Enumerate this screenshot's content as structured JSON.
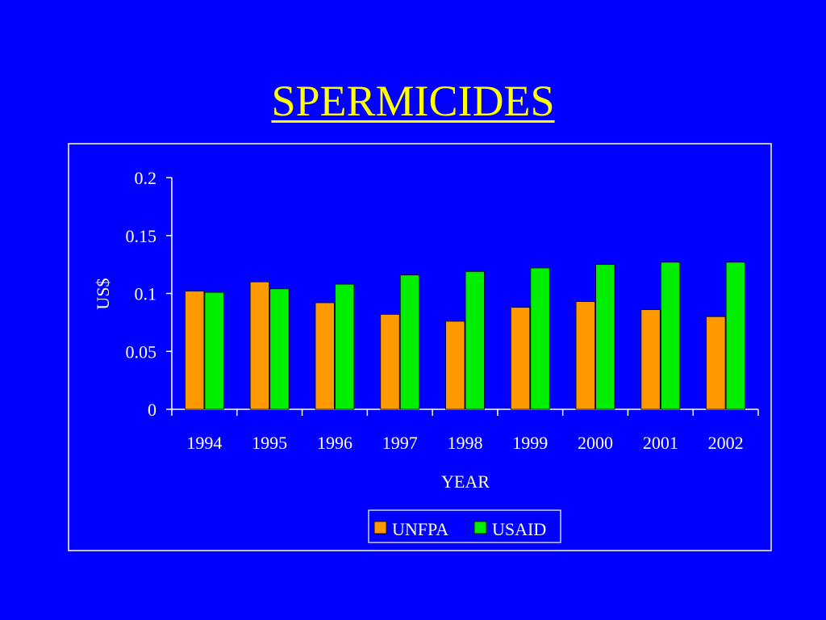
{
  "slide": {
    "title": "SPERMICIDES"
  },
  "colors": {
    "background": "#0000FF",
    "title": "#FFFF00",
    "unfpa": "#FF9900",
    "usaid": "#00EE00",
    "axis": "#FFFFFF"
  },
  "chart_data": {
    "type": "bar",
    "title": "",
    "xlabel": "YEAR",
    "ylabel": "US$",
    "ylim": [
      0,
      0.2
    ],
    "yticks": [
      "0",
      "0.05",
      "0.1",
      "0.15",
      "0.2"
    ],
    "categories": [
      "1994",
      "1995",
      "1996",
      "1997",
      "1998",
      "1999",
      "2000",
      "2001",
      "2002"
    ],
    "series": [
      {
        "name": "UNFPA",
        "values": [
          0.102,
          0.11,
          0.092,
          0.082,
          0.076,
          0.088,
          0.093,
          0.086,
          0.08
        ]
      },
      {
        "name": "USAID",
        "values": [
          0.101,
          0.104,
          0.108,
          0.116,
          0.119,
          0.122,
          0.125,
          0.127,
          0.127
        ]
      }
    ],
    "grid": false,
    "legend": "bottom-center"
  }
}
